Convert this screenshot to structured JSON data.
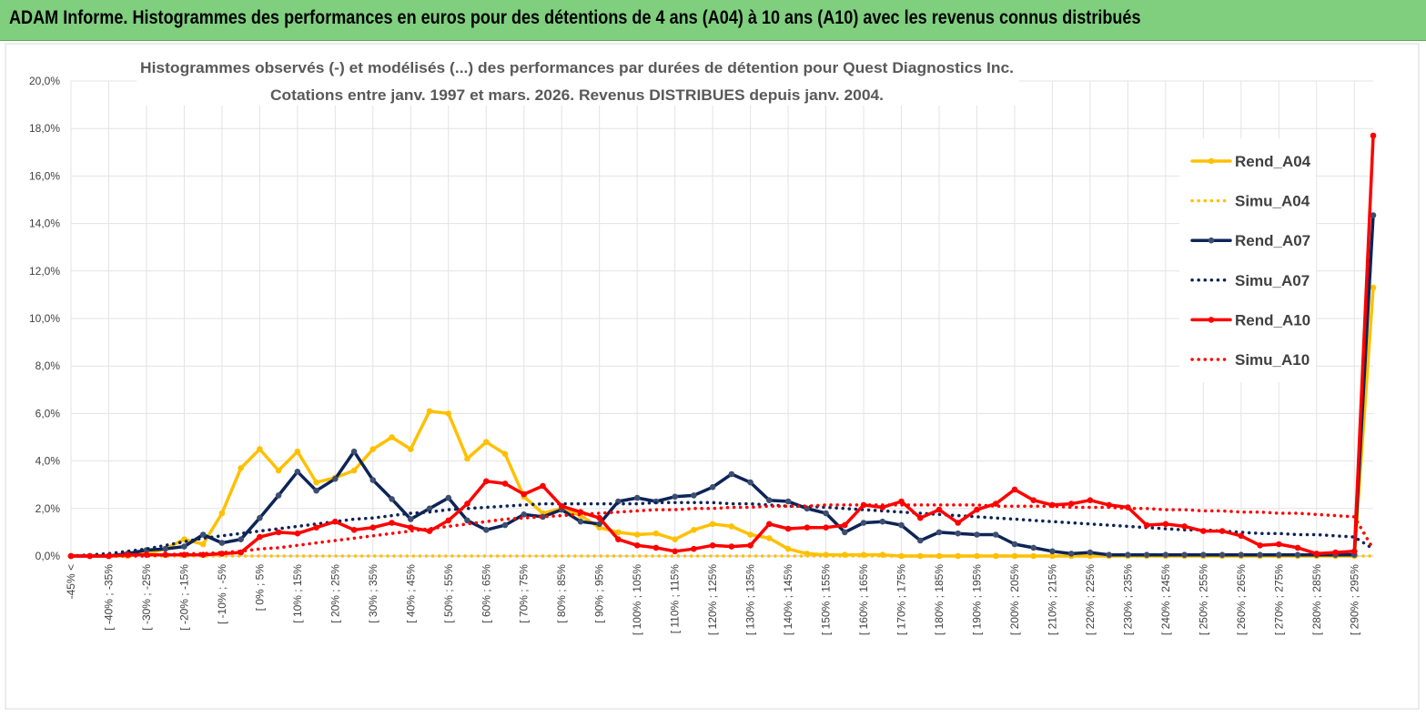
{
  "banner": {
    "title": "ADAM Informe. Histogrammes des performances en euros pour des détentions de 4 ans (A04) à 10 ans (A10) avec les revenus connus distribués"
  },
  "chart_data": {
    "type": "line",
    "title": "Histogrammes observés (-) et modélisés (...) des performances par durées de détention pour Quest Diagnostics Inc.",
    "subtitle": "Cotations entre janv. 1997 et mars. 2026. Revenus DISTRIBUES depuis janv. 2004.",
    "ylim": [
      0,
      20
    ],
    "y_ticks": [
      "0,0%",
      "2,0%",
      "4,0%",
      "6,0%",
      "8,0%",
      "10,0%",
      "12,0%",
      "14,0%",
      "16,0%",
      "18,0%",
      "20,0%"
    ],
    "x_ticks": [
      "-45% <",
      "[ -40% ; -35%",
      "[ -30% ; -25%",
      "[ -20% ; -15%",
      "[ -10% ; -5%",
      "[ 0% ; 5%",
      "[ 10% ; 15%",
      "[ 20% ; 25%",
      "[ 30% ; 35%",
      "[ 40% ; 45%",
      "[ 50% ; 55%",
      "[ 60% ; 65%",
      "[ 70% ; 75%",
      "[ 80% ; 85%",
      "[ 90% ; 95%",
      "[ 100% ; 105%",
      "[ 110% ; 115%",
      "[ 120% ; 125%",
      "[ 130% ; 135%",
      "[ 140% ; 145%",
      "[ 150% ; 155%",
      "[ 160% ; 165%",
      "[ 170% ; 175%",
      "[ 180% ; 185%",
      "[ 190% ; 195%",
      "[ 200% ; 205%",
      "[ 210% ; 215%",
      "[ 220% ; 225%",
      "[ 230% ; 235%",
      "[ 240% ; 245%",
      "[ 250% ; 255%",
      "[ 260% ; 265%",
      "[ 270% ; 275%",
      "[ 280% ; 285%",
      "[ 290% ; 295%"
    ],
    "categories_count": 70,
    "legend_position": "right",
    "series": [
      {
        "name": "Rend_A04",
        "style": "solid",
        "color": "#ffc000",
        "values": [
          0,
          0,
          0,
          0,
          0.1,
          0.3,
          0.7,
          0.5,
          1.8,
          3.7,
          4.5,
          3.6,
          4.4,
          3.1,
          3.3,
          3.6,
          4.5,
          5.0,
          4.5,
          6.1,
          6.0,
          4.1,
          4.8,
          4.3,
          2.5,
          1.8,
          2.0,
          1.7,
          1.2,
          1.0,
          0.9,
          0.95,
          0.7,
          1.1,
          1.35,
          1.25,
          0.9,
          0.75,
          0.3,
          0.1,
          0.05,
          0.05,
          0.05,
          0.05,
          0,
          0,
          0,
          0,
          0,
          0,
          0,
          0,
          0,
          0,
          0,
          0,
          0,
          0,
          0,
          0,
          0,
          0,
          0,
          0,
          0,
          0,
          0,
          0,
          0,
          11.3
        ]
      },
      {
        "name": "Simu_A04",
        "style": "dotted",
        "color": "#ffc000",
        "values": [
          0,
          0,
          0,
          0,
          0,
          0,
          0,
          0,
          0,
          0,
          0,
          0,
          0,
          0,
          0,
          0,
          0,
          0,
          0,
          0,
          0,
          0,
          0,
          0,
          0,
          0,
          0,
          0,
          0,
          0,
          0,
          0,
          0,
          0,
          0,
          0,
          0,
          0,
          0,
          0,
          0,
          0,
          0,
          0,
          0,
          0,
          0,
          0,
          0,
          0,
          0,
          0,
          0,
          0,
          0,
          0,
          0,
          0,
          0,
          0,
          0,
          0,
          0,
          0,
          0,
          0,
          0,
          0,
          0,
          0
        ]
      },
      {
        "name": "Rend_A07",
        "style": "solid",
        "color": "#0d2457",
        "values": [
          0,
          0,
          0,
          0.1,
          0.25,
          0.3,
          0.4,
          0.9,
          0.55,
          0.7,
          1.6,
          2.55,
          3.55,
          2.75,
          3.25,
          4.4,
          3.2,
          2.4,
          1.55,
          2.0,
          2.45,
          1.5,
          1.1,
          1.3,
          1.75,
          1.65,
          1.95,
          1.45,
          1.35,
          2.3,
          2.45,
          2.3,
          2.5,
          2.55,
          2.9,
          3.45,
          3.1,
          2.35,
          2.3,
          2.0,
          1.8,
          1.0,
          1.4,
          1.45,
          1.3,
          0.65,
          1.0,
          0.95,
          0.9,
          0.9,
          0.5,
          0.35,
          0.2,
          0.1,
          0.15,
          0.05,
          0.05,
          0.05,
          0.05,
          0.05,
          0.05,
          0.05,
          0.05,
          0.05,
          0.05,
          0.05,
          0.05,
          0.05,
          0.05,
          14.35
        ]
      },
      {
        "name": "Simu_A07",
        "style": "dotted",
        "color": "#0d2457",
        "values": [
          0,
          0.05,
          0.1,
          0.2,
          0.3,
          0.45,
          0.6,
          0.75,
          0.85,
          0.95,
          1.05,
          1.15,
          1.25,
          1.35,
          1.45,
          1.55,
          1.6,
          1.7,
          1.8,
          1.85,
          1.95,
          2.0,
          2.05,
          2.1,
          2.15,
          2.2,
          2.2,
          2.2,
          2.2,
          2.2,
          2.2,
          2.25,
          2.25,
          2.25,
          2.25,
          2.2,
          2.2,
          2.15,
          2.1,
          2.1,
          2.05,
          2.0,
          1.95,
          1.9,
          1.85,
          1.8,
          1.75,
          1.7,
          1.65,
          1.6,
          1.55,
          1.5,
          1.45,
          1.4,
          1.35,
          1.3,
          1.25,
          1.2,
          1.15,
          1.1,
          1.1,
          1.05,
          1.0,
          0.95,
          0.95,
          0.9,
          0.9,
          0.85,
          0.8,
          0.3
        ]
      },
      {
        "name": "Rend_A10",
        "style": "solid",
        "color": "#ff0000",
        "values": [
          0,
          0,
          0,
          0.05,
          0.05,
          0.05,
          0.05,
          0.05,
          0.1,
          0.15,
          0.8,
          1.0,
          0.95,
          1.2,
          1.45,
          1.1,
          1.2,
          1.4,
          1.2,
          1.05,
          1.5,
          2.2,
          3.15,
          3.05,
          2.6,
          2.95,
          2.1,
          1.85,
          1.6,
          0.7,
          0.45,
          0.35,
          0.2,
          0.3,
          0.45,
          0.4,
          0.45,
          1.35,
          1.15,
          1.2,
          1.2,
          1.3,
          2.15,
          2.05,
          2.3,
          1.6,
          1.95,
          1.4,
          1.95,
          2.2,
          2.8,
          2.35,
          2.15,
          2.2,
          2.35,
          2.15,
          2.05,
          1.3,
          1.35,
          1.25,
          1.05,
          1.05,
          0.85,
          0.45,
          0.5,
          0.35,
          0.1,
          0.15,
          0.2,
          17.7
        ]
      },
      {
        "name": "Simu_A10",
        "style": "dotted",
        "color": "#ff0000",
        "values": [
          0,
          0,
          0,
          0,
          0,
          0.05,
          0.1,
          0.1,
          0.15,
          0.2,
          0.3,
          0.35,
          0.45,
          0.55,
          0.65,
          0.75,
          0.85,
          0.95,
          1.05,
          1.15,
          1.25,
          1.35,
          1.45,
          1.55,
          1.6,
          1.65,
          1.7,
          1.75,
          1.8,
          1.85,
          1.9,
          1.95,
          1.95,
          2.0,
          2.0,
          2.05,
          2.05,
          2.1,
          2.1,
          2.1,
          2.15,
          2.15,
          2.15,
          2.15,
          2.15,
          2.15,
          2.15,
          2.15,
          2.15,
          2.1,
          2.1,
          2.1,
          2.1,
          2.05,
          2.05,
          2.05,
          2.0,
          2.0,
          1.95,
          1.95,
          1.9,
          1.9,
          1.85,
          1.85,
          1.8,
          1.8,
          1.75,
          1.7,
          1.65,
          0.3
        ]
      }
    ]
  }
}
